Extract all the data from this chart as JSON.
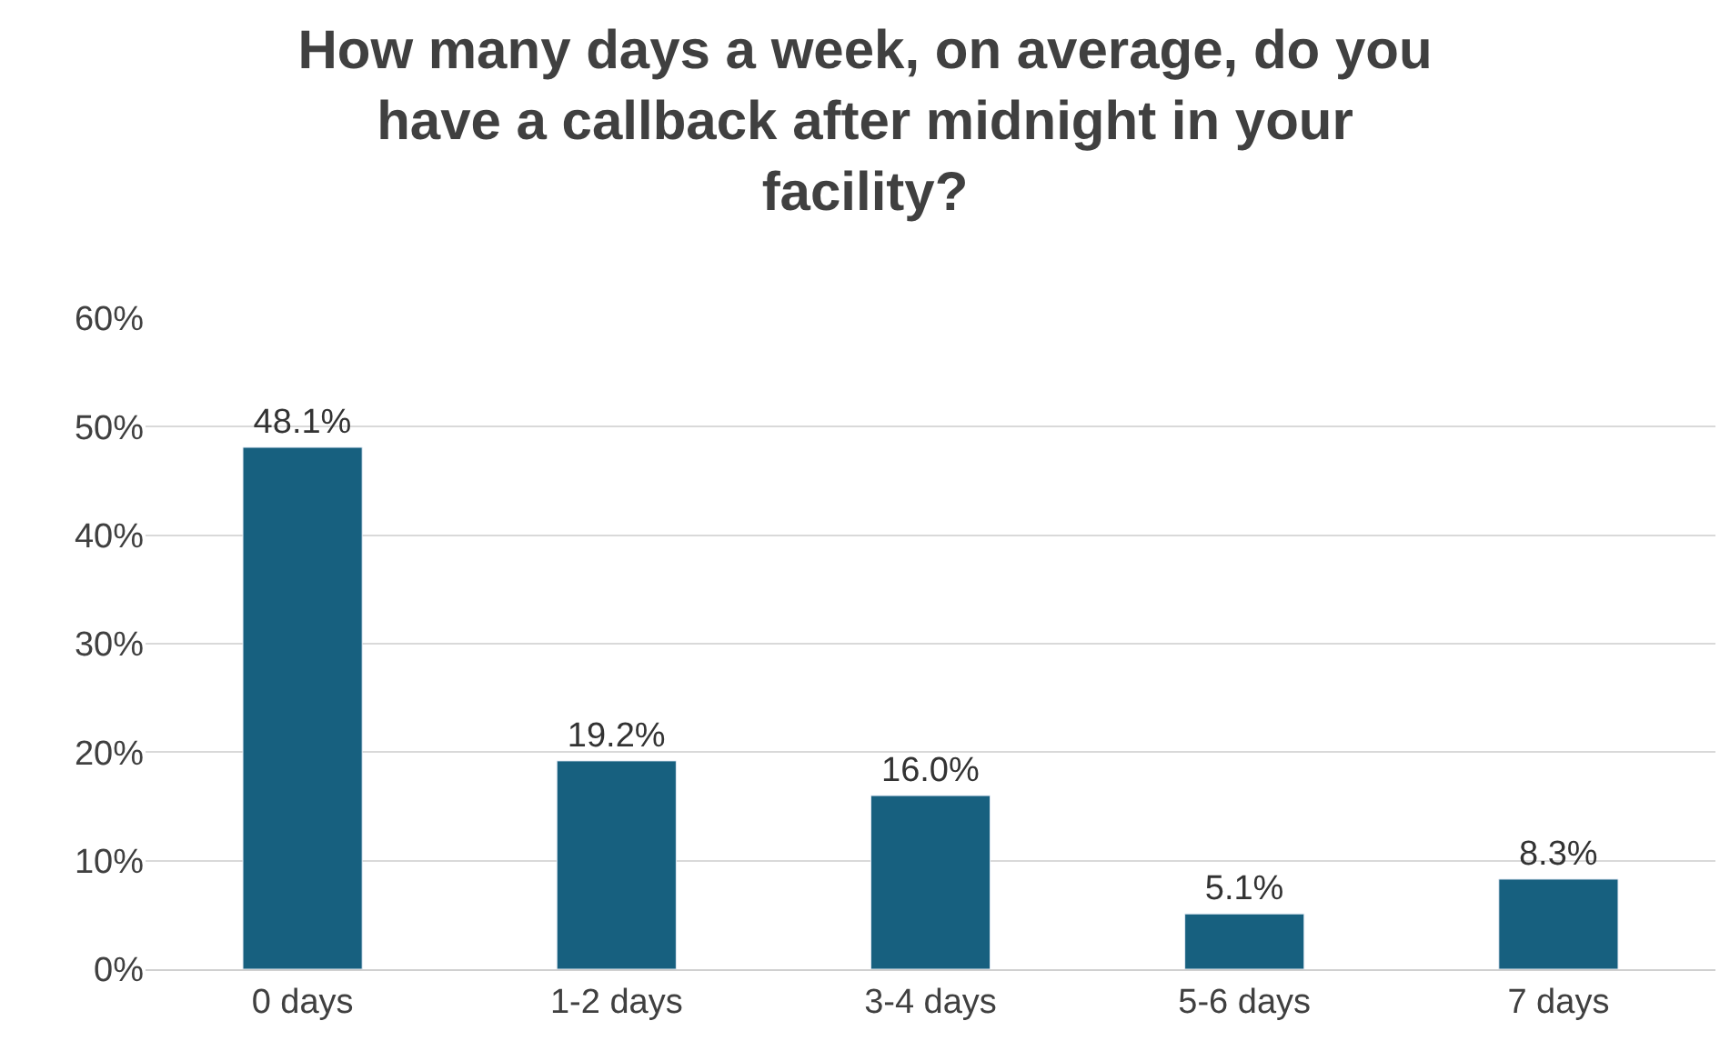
{
  "chart_data": {
    "type": "bar",
    "title": "How many days a week, on average, do you have a callback after midnight in your facility?",
    "categories": [
      "0 days",
      "1-2 days",
      "3-4 days",
      "5-6 days",
      "7 days"
    ],
    "values": [
      48.1,
      19.2,
      16.0,
      5.1,
      8.3
    ],
    "value_labels": [
      "48.1%",
      "19.2%",
      "16.0%",
      "5.1%",
      "8.3%"
    ],
    "color": "#17607f",
    "ylim": [
      0,
      60
    ],
    "yticks": [
      {
        "value": 0,
        "label": "0%"
      },
      {
        "value": 10,
        "label": "10%"
      },
      {
        "value": 20,
        "label": "20%"
      },
      {
        "value": 30,
        "label": "30%"
      },
      {
        "value": 40,
        "label": "40%"
      },
      {
        "value": 50,
        "label": "50%"
      },
      {
        "value": 60,
        "label": "60%"
      }
    ],
    "grid": "y"
  }
}
